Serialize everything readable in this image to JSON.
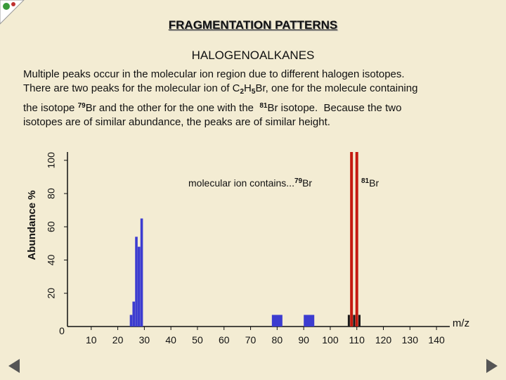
{
  "chart_data": {
    "type": "bar",
    "title": "FRAGMENTATION PATTERNS",
    "subtitle": "HALOGENOALKANES",
    "paragraph": [
      [
        "Multiple peaks occur in the molecular ion region due to different halogen isotopes."
      ],
      [
        "There are two peaks for the molecular ion of C",
        "2",
        "H",
        "5",
        "Br, one for the molecule containing"
      ],
      [
        "the isotope ",
        "79",
        "Br and the other for the one with the  ",
        "81",
        "Br isotope.  Because the two"
      ],
      [
        "isotopes are of similar abundance, the peaks are of similar height."
      ]
    ],
    "annotations": [
      [
        "molecular ion contains...",
        "79",
        "Br"
      ],
      [
        "81",
        "Br"
      ]
    ],
    "ylabel": "Abundance %",
    "xlabel": "m/z",
    "origin_label": "0",
    "xlim": [
      0,
      145
    ],
    "ylim": [
      0,
      105
    ],
    "xticks": [
      10,
      20,
      30,
      40,
      50,
      60,
      70,
      80,
      90,
      100,
      110,
      120,
      130,
      140
    ],
    "yticks": [
      20,
      40,
      60,
      80,
      100
    ],
    "series": [
      {
        "color": "#3c3cd0",
        "x": [
          25,
          26,
          27,
          28,
          29
        ],
        "values": [
          7,
          15,
          54,
          48,
          65
        ]
      },
      {
        "color": "#3c3cd0",
        "x": [
          80,
          92
        ],
        "values": [
          7,
          7
        ]
      },
      {
        "color": "#c41a10",
        "x": [
          108,
          110
        ],
        "values": [
          105,
          105
        ]
      },
      {
        "color": "#1a1a1a",
        "x": [
          107,
          109,
          111
        ],
        "values": [
          7,
          7,
          7
        ]
      }
    ]
  }
}
